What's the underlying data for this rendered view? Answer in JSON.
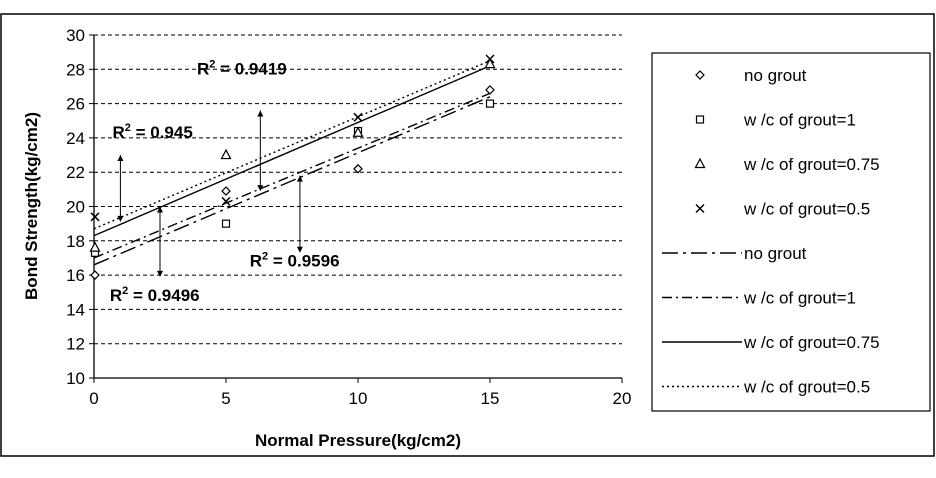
{
  "chart_data": {
    "type": "scatter",
    "xlabel": "Normal Pressure(kg/cm2)",
    "ylabel": "Bond Strength(kg/cm2)",
    "xlim": [
      0,
      20
    ],
    "ylim": [
      10,
      30
    ],
    "xticks": [
      "0",
      "5",
      "10",
      "15",
      "20"
    ],
    "yticks": [
      "10",
      "12",
      "14",
      "16",
      "18",
      "20",
      "22",
      "24",
      "26",
      "28",
      "30"
    ],
    "grid": "horizontal dashed",
    "legend_position": "right",
    "series": [
      {
        "name": "no grout",
        "marker": "diamond",
        "x": [
          0,
          5,
          10,
          15
        ],
        "y": [
          16.0,
          20.9,
          22.2,
          26.8
        ]
      },
      {
        "name": "w/c of grout=1",
        "marker": "square",
        "x": [
          0,
          5,
          10,
          15
        ],
        "y": [
          17.3,
          19.0,
          24.4,
          26.0
        ]
      },
      {
        "name": "w/c of grout=0.75",
        "marker": "triangle",
        "x": [
          0,
          5,
          10,
          15
        ],
        "y": [
          17.6,
          23.0,
          24.3,
          28.3
        ]
      },
      {
        "name": "w/c of grout=0.5",
        "marker": "x",
        "x": [
          0,
          5,
          10,
          15
        ],
        "y": [
          19.4,
          20.3,
          25.2,
          28.6
        ]
      }
    ],
    "trendlines": [
      {
        "name": "no grout",
        "style": "long-dash-dot",
        "x": [
          0,
          15
        ],
        "y": [
          16.6,
          26.4
        ]
      },
      {
        "name": "w/c of grout=1",
        "style": "dash-dot",
        "x": [
          0,
          15
        ],
        "y": [
          17.0,
          26.6
        ]
      },
      {
        "name": "w/c of grout=0.75",
        "style": "solid",
        "x": [
          0,
          15
        ],
        "y": [
          18.3,
          28.2
        ]
      },
      {
        "name": "w/c of grout=0.5",
        "style": "dotted",
        "x": [
          0,
          15
        ],
        "y": [
          18.7,
          28.5
        ]
      }
    ],
    "annotations": [
      {
        "prefix": "R",
        "sup": "2",
        "value": " = 0.9419",
        "x": 3.9,
        "y": 27.7,
        "arrow": {
          "x": 6.3,
          "y1": 25.6,
          "y2": 20.9
        }
      },
      {
        "prefix": "R",
        "sup": "2",
        "value": " = 0.945",
        "x": 0.7,
        "y": 24.0,
        "arrow": {
          "x": 1.0,
          "y1": 23.0,
          "y2": 19.1
        }
      },
      {
        "prefix": "R",
        "sup": "2",
        "value": " = 0.9596",
        "x": 5.9,
        "y": 16.5,
        "arrow": {
          "x": 7.8,
          "y1": 21.8,
          "y2": 17.3
        }
      },
      {
        "prefix": "R",
        "sup": "2",
        "value": " = 0.9496",
        "x": 0.6,
        "y": 14.5,
        "arrow": {
          "x": 2.5,
          "y1": 20.0,
          "y2": 15.9
        }
      }
    ],
    "legend": [
      {
        "label": "no grout",
        "kind": "marker",
        "symbol": "diamond"
      },
      {
        "label": "w /c of grout=1",
        "kind": "marker",
        "symbol": "square"
      },
      {
        "label": "w /c of grout=0.75",
        "kind": "marker",
        "symbol": "triangle"
      },
      {
        "label": "w /c of grout=0.5",
        "kind": "marker",
        "symbol": "x"
      },
      {
        "label": "no grout",
        "kind": "line",
        "style": "long-dash-dot"
      },
      {
        "label": "w /c of grout=1",
        "kind": "line",
        "style": "dash-dot"
      },
      {
        "label": "w /c of grout=0.75",
        "kind": "line",
        "style": "solid"
      },
      {
        "label": "w /c of grout=0.5",
        "kind": "line",
        "style": "dotted"
      }
    ]
  }
}
